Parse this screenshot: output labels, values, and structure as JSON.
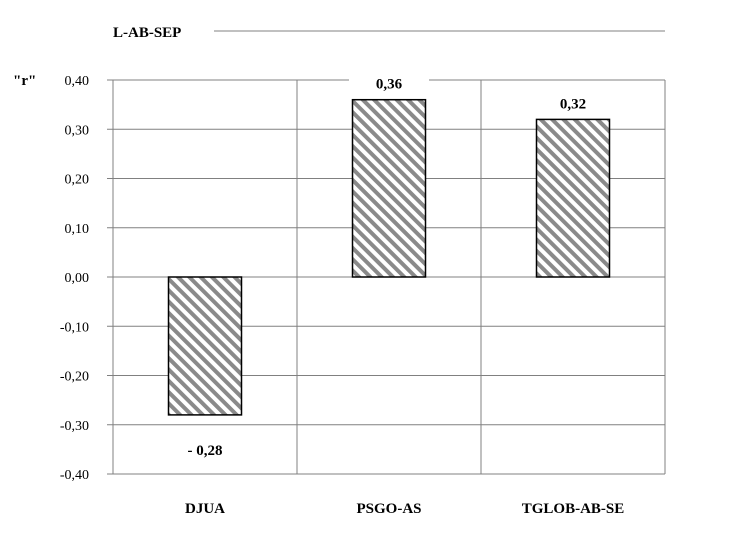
{
  "chart_data": {
    "type": "bar",
    "title": "L-AB-SEP",
    "ylabel": "\"r\"",
    "categories": [
      "DJUA",
      "PSGO-AS",
      "TGLOB-AB-SE"
    ],
    "values": [
      -0.28,
      0.36,
      0.32
    ],
    "data_labels": [
      "- 0,28",
      "0,36",
      "0,32"
    ],
    "ylim": [
      -0.4,
      0.4
    ],
    "yticks": [
      0.4,
      0.3,
      0.2,
      0.1,
      0.0,
      -0.1,
      -0.2,
      -0.3,
      -0.4
    ],
    "ytick_labels": [
      "0,40",
      "0,30",
      "0,20",
      "0,10",
      "0,00",
      "-0,10",
      "-0,20",
      "-0,30",
      "-0,40"
    ],
    "grid": true,
    "bar_fill": "diagonal-hatch",
    "colors": {
      "hatch": "#808080",
      "bar_border": "#000000",
      "grid": "#808080"
    }
  }
}
